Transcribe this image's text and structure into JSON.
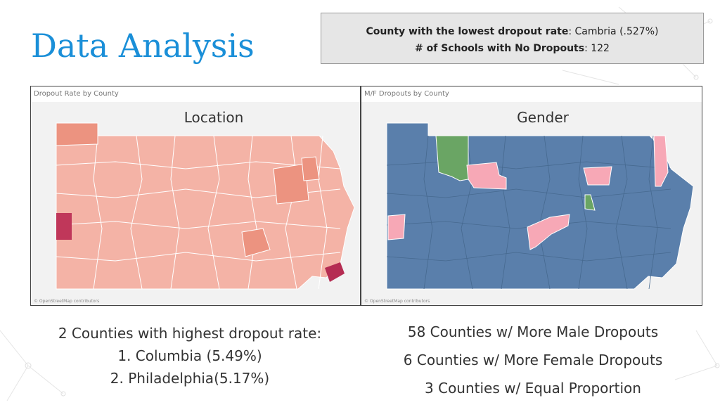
{
  "slide": {
    "title": "Data Analysis"
  },
  "stats": {
    "lowest_label": "County with the lowest dropout rate",
    "lowest_value": ": Cambria (.527%)",
    "schools_label": "# of Schools with No Dropouts",
    "schools_value": ": 122"
  },
  "map_left": {
    "panel_title": "Dropout Rate by County",
    "caption": "Location",
    "credit": "© OpenStreetMap contributors",
    "colors": {
      "base": "#f4b3a6",
      "medium": "#ec9380",
      "high": "#c0375a",
      "highest": "#b52c52"
    }
  },
  "map_right": {
    "panel_title": "M/F Dropouts by County",
    "caption": "Gender",
    "credit": "© OpenStreetMap contributors",
    "colors": {
      "male": "#5a7fab",
      "female": "#f7a8b6",
      "equal": "#6aa564"
    }
  },
  "summary_left": {
    "heading": "2 Counties with highest dropout rate:",
    "items": [
      "1. Columbia (5.49%)",
      "2. Philadelphia(5.17%)"
    ]
  },
  "summary_right": {
    "lines": [
      "58  Counties w/ More Male Dropouts",
      "6 Counties w/ More Female Dropouts",
      "3 Counties w/ Equal Proportion"
    ]
  }
}
